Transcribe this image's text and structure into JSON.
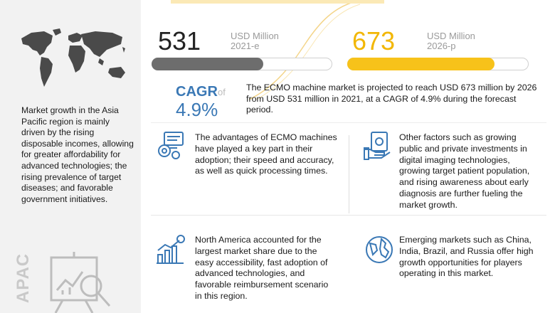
{
  "colors": {
    "accent_blue": "#3a78b5",
    "accent_yellow": "#f7c21a",
    "bar_gray": "#6d6d6d",
    "sidebar_bg": "#f2f2f2"
  },
  "metrics": {
    "y2021": {
      "value": "531",
      "unit": "USD Million",
      "year": "2021-e",
      "bar_fraction": 0.62
    },
    "y2026": {
      "value": "673",
      "unit": "USD Million",
      "year": "2026-p",
      "bar_fraction": 0.81
    }
  },
  "cagr": {
    "label": "CAGR",
    "of": "of",
    "value": "4.9%"
  },
  "summary": "The ECMO machine market is projected to reach USD 673 million by 2026 from USD 531 million in 2021, at a CAGR of 4.9% during the forecast period.",
  "sidebar": {
    "text": "Market growth in the Asia Pacific region is mainly driven by the rising disposable incomes, allowing for greater affordability for advanced technologies; the rising prevalence of target diseases; and favorable government initiatives.",
    "region_label": "APAC"
  },
  "facts": [
    {
      "icon": "gears-monitor-icon",
      "text": "The advantages of ECMO machines have played a key part in their adoption; their speed and accuracy, as well as quick processing times."
    },
    {
      "icon": "money-hand-icon",
      "text": "Other factors such as growing public and private investments in digital imaging technologies, growing target patient population, and rising awareness about early diagnosis are further fueling the market growth."
    },
    {
      "icon": "bar-chart-dollar-icon",
      "text": "North America accounted for the largest market share due to the easy accessibility, fast adoption of advanced technologies, and favorable reimbursement scenario in this region."
    },
    {
      "icon": "globe-icon",
      "text": "Emerging markets such as China, India, Brazil, and Russia offer high growth opportunities for players operating in this market."
    }
  ]
}
